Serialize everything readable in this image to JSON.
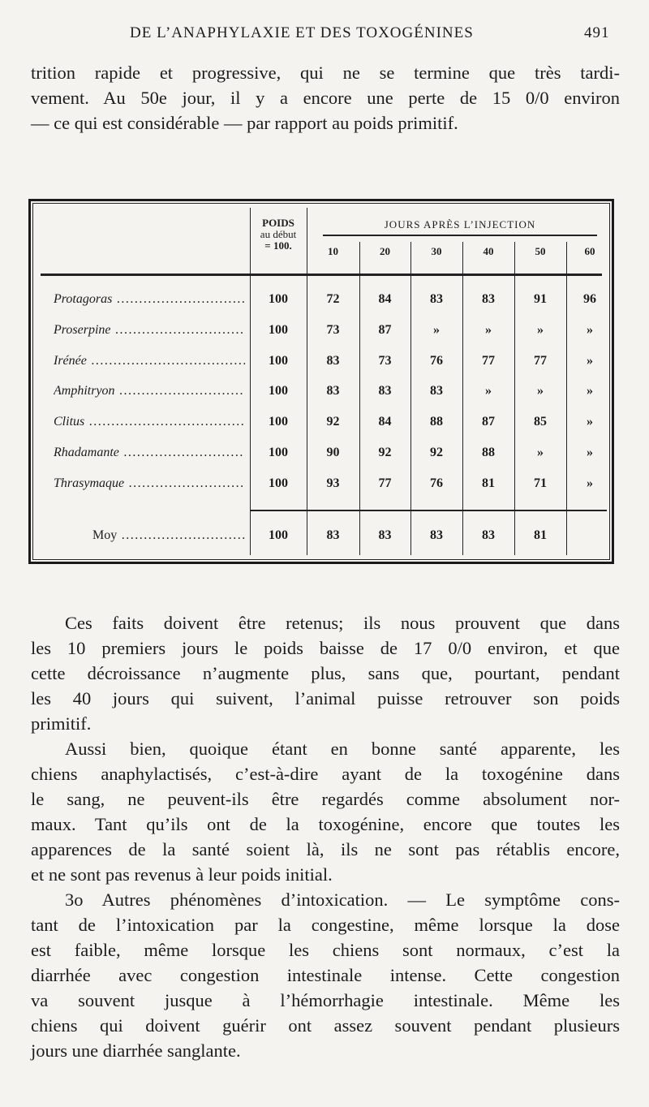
{
  "running_head": {
    "title": "DE L’ANAPHYLAXIE ET DES TOXOGÉNINES",
    "page_number": "491"
  },
  "intro_lines": [
    "trition rapide et progressive, qui ne se termine que très tardi-",
    "vement. Au 50e jour, il y a encore une perte de 15 0/0 environ",
    "— ce qui est considérable — par rapport au poids primitif."
  ],
  "table": {
    "poids_header": [
      "POIDS",
      "au début",
      "= 100."
    ],
    "group_header": "JOURS APRÈS L’INJECTION",
    "day_headers": [
      "10",
      "20",
      "30",
      "40",
      "50",
      "60"
    ],
    "rows": [
      {
        "name": "Protagoras",
        "poids": "100",
        "values": [
          "72",
          "84",
          "83",
          "83",
          "91",
          "96"
        ]
      },
      {
        "name": "Proserpine",
        "poids": "100",
        "values": [
          "73",
          "87",
          "»",
          "»",
          "»",
          "»"
        ]
      },
      {
        "name": "Irénée",
        "poids": "100",
        "values": [
          "83",
          "73",
          "76",
          "77",
          "77",
          "»"
        ]
      },
      {
        "name": "Amphitryon",
        "poids": "100",
        "values": [
          "83",
          "83",
          "83",
          "»",
          "»",
          "»"
        ]
      },
      {
        "name": "Clitus",
        "poids": "100",
        "values": [
          "92",
          "84",
          "88",
          "87",
          "85",
          "»"
        ]
      },
      {
        "name": "Rhadamante",
        "poids": "100",
        "values": [
          "90",
          "92",
          "92",
          "88",
          "»",
          "»"
        ]
      },
      {
        "name": "Thrasymaque",
        "poids": "100",
        "values": [
          "93",
          "77",
          "76",
          "81",
          "71",
          "»"
        ]
      }
    ],
    "average": {
      "name": "Moy",
      "poids": "100",
      "values": [
        "83",
        "83",
        "83",
        "83",
        "81",
        ""
      ]
    }
  },
  "body_paragraphs": [
    {
      "indent": true,
      "lines": [
        "Ces faits doivent être retenus; ils nous prouvent que dans",
        "les 10 premiers jours le poids baisse de 17 0/0 environ, et que",
        "cette décroissance n’augmente plus, sans que, pourtant, pendant",
        "les 40 jours qui suivent, l’animal puisse retrouver son poids",
        "primitif."
      ]
    },
    {
      "indent": true,
      "lines": [
        "Aussi bien, quoique étant en bonne santé apparente, les",
        "chiens anaphylactisés, c’est-à-dire ayant de la toxogénine dans",
        "le sang, ne peuvent-ils être regardés comme absolument nor-",
        "maux. Tant qu’ils ont de la toxogénine, encore que toutes les",
        "apparences de la santé soient là, ils ne sont pas rétablis encore,",
        "et ne sont pas revenus à leur poids initial."
      ]
    },
    {
      "indent": true,
      "lines": [
        "3o Autres phénomènes d’intoxication. — Le symptôme cons-",
        "tant de l’intoxication par la congestine, même lorsque la dose",
        "est faible, même lorsque les chiens sont normaux, c’est la",
        "diarrhée avec congestion intestinale intense. Cette congestion",
        "va souvent jusque à l’hémorrhagie intestinale. Même les",
        "chiens qui doivent guérir ont assez souvent pendant plusieurs",
        "jours une diarrhée sanglante."
      ]
    }
  ]
}
